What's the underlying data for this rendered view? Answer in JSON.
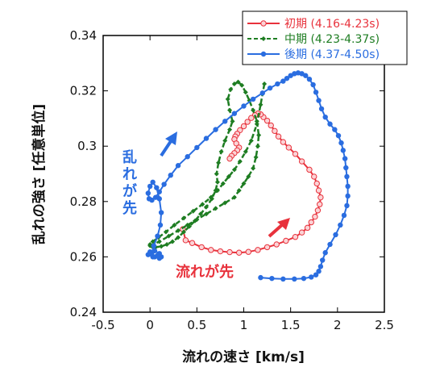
{
  "chart_data": {
    "type": "line",
    "xlabel": "流れの速さ [km/s]",
    "ylabel": "乱れの強さ [任意単位]",
    "xlim": [
      -0.5,
      2.5
    ],
    "ylim": [
      0.24,
      0.34
    ],
    "xticks": [
      -0.5,
      0,
      0.5,
      1,
      1.5,
      2,
      2.5
    ],
    "xtick_labels": [
      "-0.5",
      "0",
      "0.5",
      "1",
      "1.5",
      "2",
      "2.5"
    ],
    "yticks": [
      0.24,
      0.26,
      0.28,
      0.3,
      0.32,
      0.34
    ],
    "ytick_labels": [
      "0.24",
      "0.26",
      "0.28",
      "0.3",
      "0.32",
      "0.34"
    ],
    "grid": false,
    "legend_position": "top-right",
    "series": [
      {
        "name": "初期 (4.16-4.23s)",
        "color": "#e8323c",
        "marker": "hollow-circle",
        "line_style": "solid",
        "x": [
          0.35,
          0.38,
          0.45,
          0.55,
          0.65,
          0.75,
          0.85,
          0.95,
          1.05,
          1.15,
          1.25,
          1.35,
          1.45,
          1.55,
          1.62,
          1.68,
          1.72,
          1.76,
          1.79,
          1.81,
          1.82,
          1.8,
          1.78,
          1.75,
          1.7,
          1.62,
          1.55,
          1.48,
          1.42,
          1.37,
          1.33,
          1.29,
          1.25,
          1.21,
          1.18,
          1.15,
          1.12,
          1.08,
          1.04,
          1.0,
          0.96,
          0.93,
          0.91,
          0.9,
          0.92,
          0.95,
          0.93,
          0.9,
          0.87,
          0.85
        ],
        "y": [
          0.27,
          0.266,
          0.265,
          0.2635,
          0.2625,
          0.262,
          0.2617,
          0.2615,
          0.2618,
          0.2625,
          0.2635,
          0.2645,
          0.2658,
          0.2672,
          0.2688,
          0.2705,
          0.2725,
          0.2745,
          0.2768,
          0.279,
          0.2815,
          0.284,
          0.2865,
          0.289,
          0.2915,
          0.2945,
          0.2972,
          0.2995,
          0.3015,
          0.3035,
          0.3055,
          0.3075,
          0.3092,
          0.3105,
          0.3115,
          0.3118,
          0.3112,
          0.3102,
          0.3088,
          0.3072,
          0.3058,
          0.3045,
          0.3035,
          0.3025,
          0.301,
          0.2995,
          0.2985,
          0.2975,
          0.2965,
          0.2955
        ]
      },
      {
        "name": "中期 (4.23-4.37s)",
        "color": "#1e7d22",
        "marker": "diamond",
        "line_style": "dashed",
        "x": [
          0.0,
          0.1,
          0.2,
          0.3,
          0.4,
          0.5,
          0.6,
          0.7,
          0.8,
          0.9,
          0.95,
          1.0,
          1.05,
          1.1,
          1.13,
          1.15,
          1.16,
          1.14,
          1.1,
          1.06,
          1.02,
          0.98,
          0.94,
          0.9,
          0.86,
          0.83,
          0.85,
          0.88,
          0.85,
          0.8,
          0.76,
          0.73,
          0.71,
          0.72,
          0.7,
          0.66,
          0.6,
          0.54,
          0.48,
          0.42,
          0.36,
          0.3,
          0.24,
          0.18,
          0.12,
          0.06,
          0.02,
          0.0,
          0.03,
          0.09,
          0.17,
          0.26,
          0.36,
          0.46,
          0.56,
          0.65,
          0.72,
          0.78,
          0.84,
          0.9,
          0.96,
          1.02,
          1.08,
          1.14,
          1.18,
          1.22
        ],
        "y": [
          0.264,
          0.2655,
          0.2675,
          0.2695,
          0.2715,
          0.2735,
          0.2755,
          0.2775,
          0.2795,
          0.2815,
          0.284,
          0.2865,
          0.289,
          0.292,
          0.296,
          0.3,
          0.304,
          0.309,
          0.313,
          0.3165,
          0.3195,
          0.322,
          0.3232,
          0.3225,
          0.3205,
          0.317,
          0.313,
          0.309,
          0.306,
          0.302,
          0.298,
          0.294,
          0.29,
          0.287,
          0.284,
          0.281,
          0.278,
          0.2755,
          0.273,
          0.271,
          0.269,
          0.267,
          0.2655,
          0.2645,
          0.2638,
          0.2635,
          0.2638,
          0.2645,
          0.2655,
          0.267,
          0.269,
          0.2715,
          0.274,
          0.2765,
          0.279,
          0.2815,
          0.284,
          0.2865,
          0.289,
          0.2915,
          0.2945,
          0.298,
          0.302,
          0.308,
          0.315,
          0.3225
        ]
      },
      {
        "name": "後期 (4.37-4.50s)",
        "color": "#2a6de0",
        "marker": "filled-circle",
        "line_style": "solid",
        "x": [
          1.18,
          1.3,
          1.42,
          1.54,
          1.64,
          1.72,
          1.77,
          1.8,
          1.82,
          1.84,
          1.87,
          1.92,
          1.98,
          2.03,
          2.07,
          2.1,
          2.11,
          2.11,
          2.1,
          2.09,
          2.08,
          2.06,
          2.04,
          2.01,
          1.97,
          1.92,
          1.87,
          1.83,
          1.8,
          1.77,
          1.74,
          1.7,
          1.66,
          1.62,
          1.58,
          1.54,
          1.5,
          1.46,
          1.42,
          1.36,
          1.28,
          1.2,
          1.1,
          1.0,
          0.9,
          0.8,
          0.7,
          0.6,
          0.5,
          0.4,
          0.3,
          0.22,
          0.15,
          0.1,
          0.06,
          0.02,
          -0.01,
          -0.02,
          0.0,
          0.03,
          0.07,
          0.1,
          0.12,
          0.11,
          0.08,
          0.04,
          0.02,
          0.05,
          0.1,
          0.12,
          0.1,
          0.05,
          0.0,
          -0.02,
          0.03,
          0.08
        ],
        "y": [
          0.2525,
          0.2522,
          0.252,
          0.252,
          0.2522,
          0.2527,
          0.2535,
          0.2548,
          0.2565,
          0.2588,
          0.2615,
          0.2645,
          0.268,
          0.2715,
          0.275,
          0.2785,
          0.282,
          0.2855,
          0.289,
          0.2922,
          0.2955,
          0.2985,
          0.3012,
          0.3038,
          0.306,
          0.308,
          0.3105,
          0.3135,
          0.3165,
          0.3195,
          0.3222,
          0.3242,
          0.3255,
          0.3262,
          0.3265,
          0.3262,
          0.3255,
          0.3245,
          0.3235,
          0.3225,
          0.321,
          0.3192,
          0.317,
          0.3145,
          0.3118,
          0.309,
          0.306,
          0.3028,
          0.2995,
          0.2962,
          0.293,
          0.2895,
          0.2862,
          0.2835,
          0.2815,
          0.2805,
          0.281,
          0.283,
          0.2855,
          0.287,
          0.285,
          0.281,
          0.276,
          0.2715,
          0.2675,
          0.264,
          0.2615,
          0.26,
          0.2595,
          0.26,
          0.2612,
          0.2622,
          0.2618,
          0.2608,
          0.26,
          0.2605
        ]
      }
    ],
    "annotations": [
      {
        "text": "乱れが先",
        "color": "#2a6de0"
      },
      {
        "text": "流れが先",
        "color": "#e8323c"
      }
    ]
  }
}
